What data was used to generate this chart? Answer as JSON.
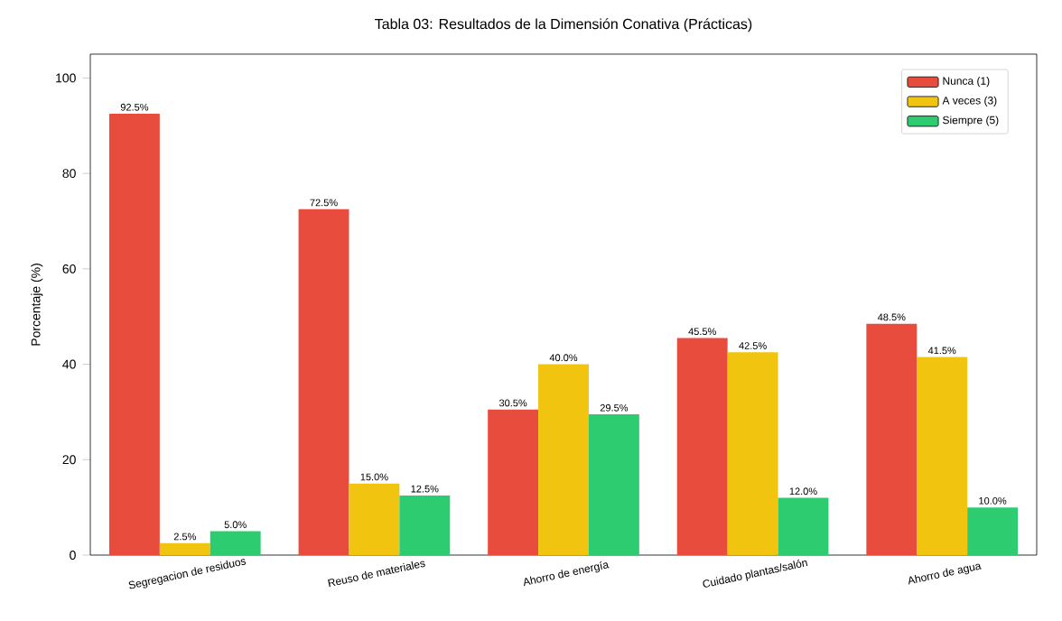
{
  "chart_data": {
    "type": "bar",
    "title": "Tabla 03: Resultados de la Dimensión Conativa (Prácticas)",
    "ylabel": "Porcentaje (%)",
    "categories": [
      "Segregacion de residuos",
      "Reuso de materiales",
      "Ahorro de energía",
      "Cuidado plantas/salón",
      "Ahorro de agua"
    ],
    "series": [
      {
        "name": "Nunca (1)",
        "color": "#e74c3c",
        "values": [
          92.5,
          72.5,
          30.5,
          45.5,
          48.5
        ],
        "value_labels": [
          "92.5%",
          "72.5%",
          "30.5%",
          "45.5%",
          "48.5%"
        ]
      },
      {
        "name": "A veces (3)",
        "color": "#f1c40f",
        "values": [
          2.5,
          15.0,
          40.0,
          42.5,
          41.5
        ],
        "value_labels": [
          "2.5%",
          "15.0%",
          "40.0%",
          "42.5%",
          "41.5%"
        ]
      },
      {
        "name": "Siempre (5)",
        "color": "#2ecc71",
        "values": [
          5.0,
          12.5,
          29.5,
          12.0,
          10.0
        ],
        "value_labels": [
          "5.0%",
          "12.5%",
          "29.5%",
          "12.0%",
          "10.0%"
        ]
      }
    ],
    "ylim": [
      0,
      105
    ],
    "yticks": [
      0,
      20,
      40,
      60,
      80,
      100
    ],
    "legend": "top right",
    "grid": false
  }
}
